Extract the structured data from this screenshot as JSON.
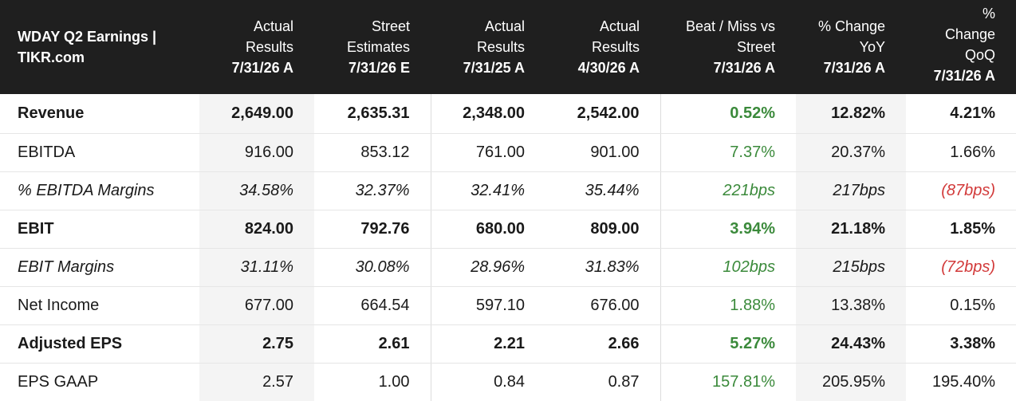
{
  "header": {
    "title_line1": "WDAY Q2 Earnings |",
    "title_line2": "TIKR.com",
    "columns": [
      {
        "line1": "Actual",
        "line2": "Results",
        "date": "7/31/26 A"
      },
      {
        "line1": "Street",
        "line2": "Estimates",
        "date": "7/31/26 E"
      },
      {
        "line1": "Actual",
        "line2": "Results",
        "date": "7/31/25 A"
      },
      {
        "line1": "Actual",
        "line2": "Results",
        "date": "4/30/26 A"
      },
      {
        "line1": "Beat / Miss vs",
        "line2": "Street",
        "date": "7/31/26 A"
      },
      {
        "line1": "% Change",
        "line2": "YoY",
        "date": "7/31/26 A"
      },
      {
        "line0": "%",
        "line1": "Change",
        "line2": "QoQ",
        "date": "7/31/26 A"
      }
    ]
  },
  "rows": [
    {
      "label": "Revenue",
      "values": [
        "2,649.00",
        "2,635.31",
        "2,348.00",
        "2,542.00",
        "0.52%",
        "12.82%",
        "4.21%"
      ]
    },
    {
      "label": "EBITDA",
      "values": [
        "916.00",
        "853.12",
        "761.00",
        "901.00",
        "7.37%",
        "20.37%",
        "1.66%"
      ]
    },
    {
      "label": "% EBITDA Margins",
      "values": [
        "34.58%",
        "32.37%",
        "32.41%",
        "35.44%",
        "221bps",
        "217bps",
        "(87bps)"
      ]
    },
    {
      "label": "EBIT",
      "values": [
        "824.00",
        "792.76",
        "680.00",
        "809.00",
        "3.94%",
        "21.18%",
        "1.85%"
      ]
    },
    {
      "label": "EBIT Margins",
      "values": [
        "31.11%",
        "30.08%",
        "28.96%",
        "31.83%",
        "102bps",
        "215bps",
        "(72bps)"
      ]
    },
    {
      "label": "Net Income",
      "values": [
        "677.00",
        "664.54",
        "597.10",
        "676.00",
        "1.88%",
        "13.38%",
        "0.15%"
      ]
    },
    {
      "label": "Adjusted EPS",
      "values": [
        "2.75",
        "2.61",
        "2.21",
        "2.66",
        "5.27%",
        "24.43%",
        "3.38%"
      ]
    },
    {
      "label": "EPS GAAP",
      "values": [
        "2.57",
        "1.00",
        "0.84",
        "0.87",
        "157.81%",
        "205.95%",
        "195.40%"
      ]
    }
  ],
  "colors": {
    "header_bg": "#1f1f1f",
    "positive": "#3b8a3b",
    "negative": "#d23a3a",
    "shade": "#f4f4f4"
  }
}
